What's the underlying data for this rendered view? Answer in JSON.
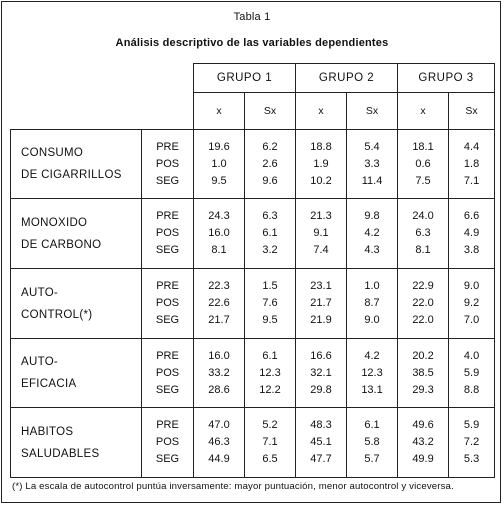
{
  "caption": "Tabla 1",
  "title": "Análisis descriptivo de las variables dependientes",
  "groups": [
    "GRUPO 1",
    "GRUPO 2",
    "GRUPO 3"
  ],
  "subheaders": [
    "x",
    "Sx"
  ],
  "rows": [
    {
      "name_lines": [
        "CONSUMO",
        "DE CIGARRILLOS"
      ],
      "conditions": [
        "PRE",
        "POS",
        "SEG"
      ],
      "g1x": [
        "19.6",
        "1.0",
        "9.5"
      ],
      "g1s": [
        "6.2",
        "2.6",
        "9.6"
      ],
      "g2x": [
        "18.8",
        "1.9",
        "10.2"
      ],
      "g2s": [
        "5.4",
        "3.3",
        "11.4"
      ],
      "g3x": [
        "18.1",
        "0.6",
        "7.5"
      ],
      "g3s": [
        "4.4",
        "1.8",
        "7.1"
      ]
    },
    {
      "name_lines": [
        "MONOXIDO",
        "DE CARBONO"
      ],
      "conditions": [
        "PRE",
        "POS",
        "SEG"
      ],
      "g1x": [
        "24.3",
        "16.0",
        "8.1"
      ],
      "g1s": [
        "6.3",
        "6.1",
        "3.2"
      ],
      "g2x": [
        "21.3",
        "9.1",
        "7.4"
      ],
      "g2s": [
        "9.8",
        "4.2",
        "4.3"
      ],
      "g3x": [
        "24.0",
        "6.3",
        "8.1"
      ],
      "g3s": [
        "6.6",
        "4.9",
        "3.8"
      ]
    },
    {
      "name_lines": [
        "AUTO-",
        "CONTROL(*)"
      ],
      "conditions": [
        "PRE",
        "POS",
        "SEG"
      ],
      "g1x": [
        "22.3",
        "22.6",
        "21.7"
      ],
      "g1s": [
        "1.5",
        "7.6",
        "9.5"
      ],
      "g2x": [
        "23.1",
        "21.7",
        "21.9"
      ],
      "g2s": [
        "1.0",
        "8.7",
        "9.0"
      ],
      "g3x": [
        "22.9",
        "22.0",
        "22.0"
      ],
      "g3s": [
        "9.0",
        "9.2",
        "7.0"
      ]
    },
    {
      "name_lines": [
        "AUTO-",
        "EFICACIA"
      ],
      "conditions": [
        "PRE",
        "POS",
        "SEG"
      ],
      "g1x": [
        "16.0",
        "33.2",
        "28.6"
      ],
      "g1s": [
        "6.1",
        "12.3",
        "12.2"
      ],
      "g2x": [
        "16.6",
        "32.1",
        "29.8"
      ],
      "g2s": [
        "4.2",
        "12.3",
        "13.1"
      ],
      "g3x": [
        "20.2",
        "38.5",
        "29.3"
      ],
      "g3s": [
        "4.0",
        "5.9",
        "8.8"
      ]
    },
    {
      "name_lines": [
        "HABITOS",
        "SALUDABLES"
      ],
      "conditions": [
        "PRE",
        "POS",
        "SEG"
      ],
      "g1x": [
        "47.0",
        "46.3",
        "44.9"
      ],
      "g1s": [
        "5.2",
        "7.1",
        "6.5"
      ],
      "g2x": [
        "48.3",
        "45.1",
        "47.7"
      ],
      "g2s": [
        "6.1",
        "5.8",
        "5.7"
      ],
      "g3x": [
        "49.6",
        "43.2",
        "49.9"
      ],
      "g3s": [
        "5.9",
        "7.2",
        "5.3"
      ]
    }
  ],
  "footnote": "(*)  La escala de autocontrol puntúa inversamente: mayor puntuación, menor autocontrol y viceversa."
}
